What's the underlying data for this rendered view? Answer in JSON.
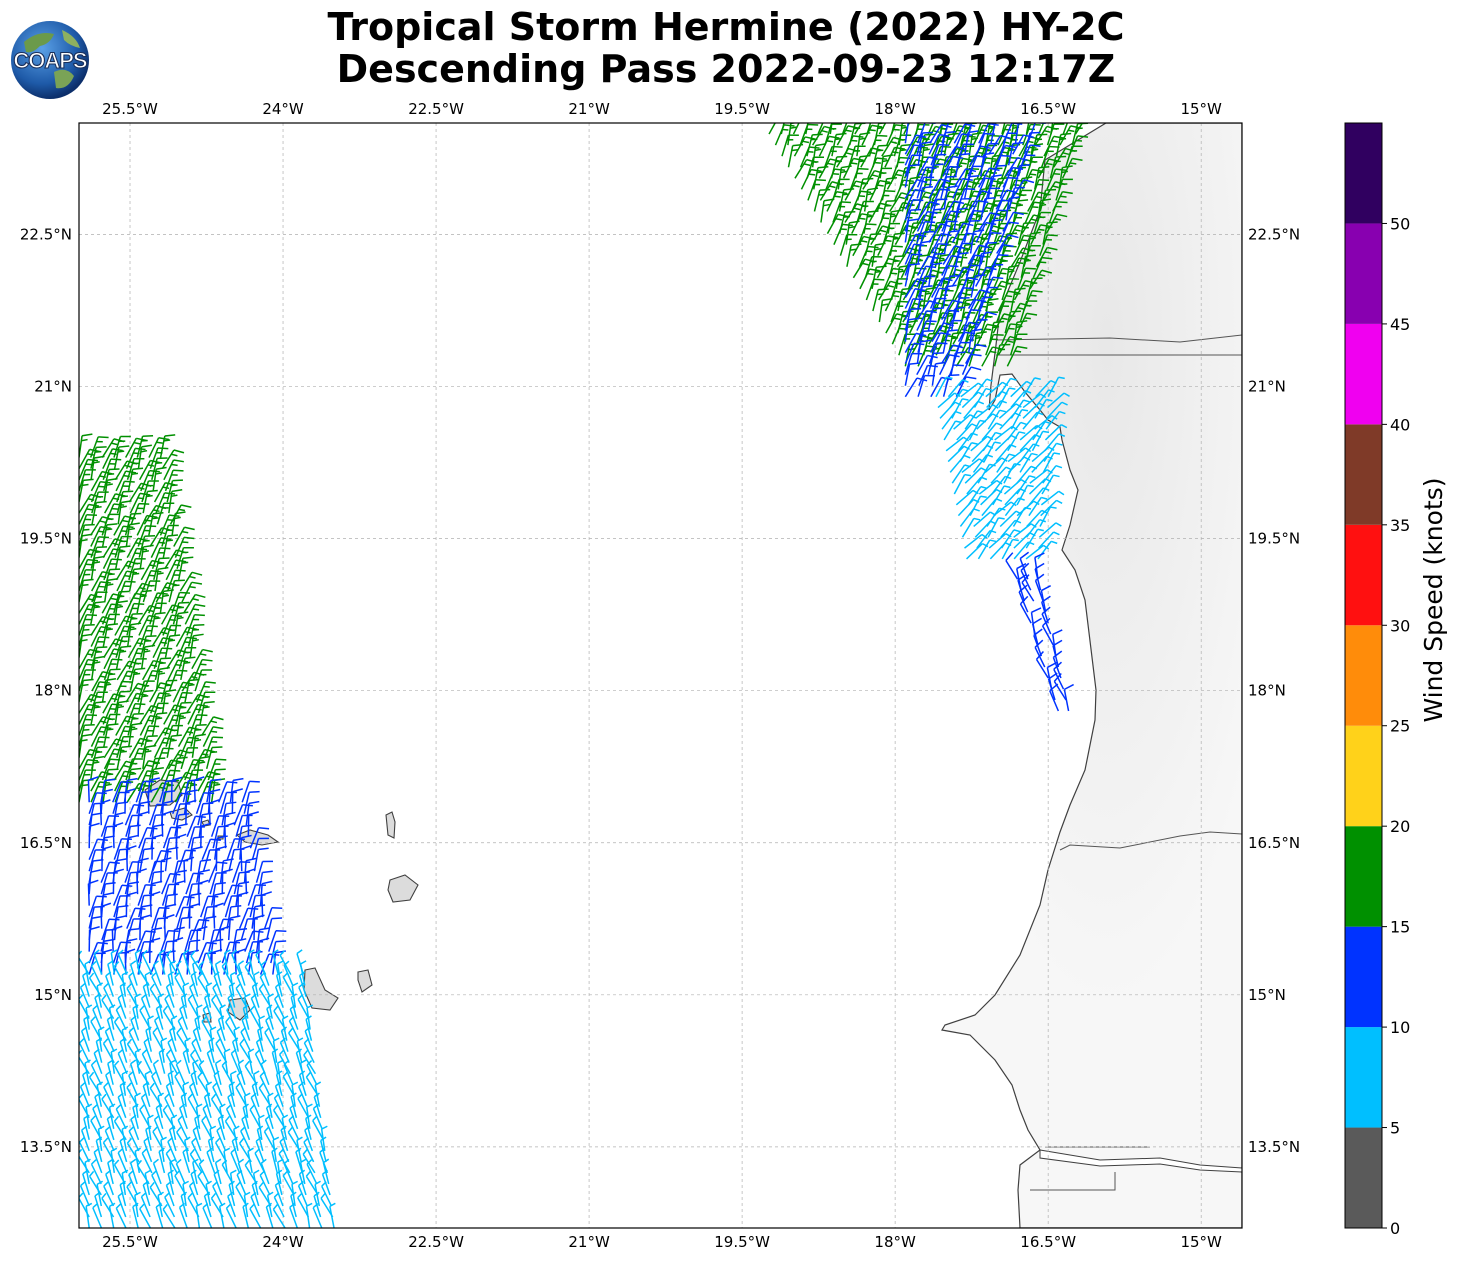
{
  "title": {
    "line1": "Tropical Storm Hermine (2022) HY-2C",
    "line2": "Descending Pass 2022-09-23 12:17Z"
  },
  "logo": {
    "text": "COAPS"
  },
  "axes": {
    "lon_labels": [
      "25.5°W",
      "24°W",
      "22.5°W",
      "21°W",
      "19.5°W",
      "18°W",
      "16.5°W",
      "15°W"
    ],
    "lat_labels": [
      "22.5°N",
      "21°N",
      "19.5°N",
      "18°N",
      "16.5°N",
      "15°N",
      "13.5°N"
    ],
    "lon_values": [
      -25.5,
      -24,
      -22.5,
      -21,
      -19.5,
      -18,
      -16.5,
      -15
    ],
    "lat_values": [
      22.5,
      21,
      19.5,
      18,
      16.5,
      15,
      13.5
    ],
    "lon_range": [
      -26.0,
      -14.6
    ],
    "lat_range": [
      12.7,
      23.6
    ],
    "grid": true
  },
  "colorbar": {
    "title": "Wind Speed (knots)",
    "ticks": [
      "0",
      "5",
      "10",
      "15",
      "20",
      "25",
      "30",
      "35",
      "40",
      "45",
      "50"
    ],
    "bins": [
      {
        "from": 0,
        "to": 5,
        "color": "#5a5a5a"
      },
      {
        "from": 5,
        "to": 10,
        "color": "#00bfff"
      },
      {
        "from": 10,
        "to": 15,
        "color": "#0033ff"
      },
      {
        "from": 15,
        "to": 20,
        "color": "#009000"
      },
      {
        "from": 20,
        "to": 25,
        "color": "#ffd21a"
      },
      {
        "from": 25,
        "to": 30,
        "color": "#ff8c0a"
      },
      {
        "from": 30,
        "to": 35,
        "color": "#ff1010"
      },
      {
        "from": 35,
        "to": 40,
        "color": "#7f3a28"
      },
      {
        "from": 40,
        "to": 45,
        "color": "#f000f0"
      },
      {
        "from": 45,
        "to": 50,
        "color": "#8800b0"
      },
      {
        "from": 50,
        "to": 55,
        "color": "#300060"
      }
    ]
  },
  "wind_swaths": [
    {
      "region": "northeast",
      "lat_top": 23.6,
      "lat_bottom": 21.2,
      "lon_left_top": -19.3,
      "lon_right_top": -16.2,
      "lon_left_bottom": -17.9,
      "lon_right_bottom": -16.9,
      "speed_knots": 17,
      "direction_deg": 20
    },
    {
      "region": "northeast-inner",
      "lat_top": 23.4,
      "lat_bottom": 20.9,
      "lon_left_top": -17.9,
      "lon_right_top": -16.7,
      "lon_left_bottom": -17.9,
      "lon_right_bottom": -17.4,
      "speed_knots": 12,
      "direction_deg": 20
    },
    {
      "region": "coastal",
      "lat_top": 20.9,
      "lat_bottom": 19.3,
      "lon_left_top": -17.6,
      "lon_right_top": -16.5,
      "lon_left_bottom": -17.3,
      "lon_right_bottom": -16.6,
      "speed_knots": 8,
      "direction_deg": 40
    },
    {
      "region": "coastal-south",
      "lat_top": 19.1,
      "lat_bottom": 17.8,
      "lon_left_top": -16.8,
      "lon_right_top": -16.6,
      "lon_left_bottom": -16.4,
      "lon_right_bottom": -16.3,
      "speed_knots": 12,
      "direction_deg": 340
    },
    {
      "region": "west-north",
      "lat_top": 20.3,
      "lat_bottom": 16.9,
      "lon_left_top": -26.0,
      "lon_right_top": -25.2,
      "lon_left_bottom": -26.0,
      "lon_right_bottom": -24.7,
      "speed_knots": 17,
      "direction_deg": 20
    },
    {
      "region": "west-mid",
      "lat_top": 16.9,
      "lat_bottom": 15.2,
      "lon_left_top": -25.9,
      "lon_right_top": -24.4,
      "lon_left_bottom": -25.9,
      "lon_right_bottom": -24.1,
      "speed_knots": 12,
      "direction_deg": 10
    },
    {
      "region": "west-south",
      "lat_top": 15.2,
      "lat_bottom": 12.7,
      "lon_left_top": -25.9,
      "lon_right_top": -23.8,
      "lon_left_bottom": -25.9,
      "lon_right_bottom": -23.5,
      "speed_knots": 8,
      "direction_deg": 340
    }
  ]
}
